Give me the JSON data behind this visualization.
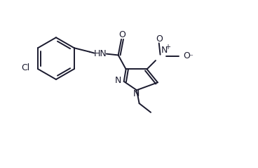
{
  "background_color": "#ffffff",
  "line_color": "#1a1a2e",
  "line_width": 1.4,
  "figsize": [
    3.68,
    2.39
  ],
  "dpi": 100,
  "xlim": [
    0,
    10
  ],
  "ylim": [
    0,
    6.5
  ]
}
